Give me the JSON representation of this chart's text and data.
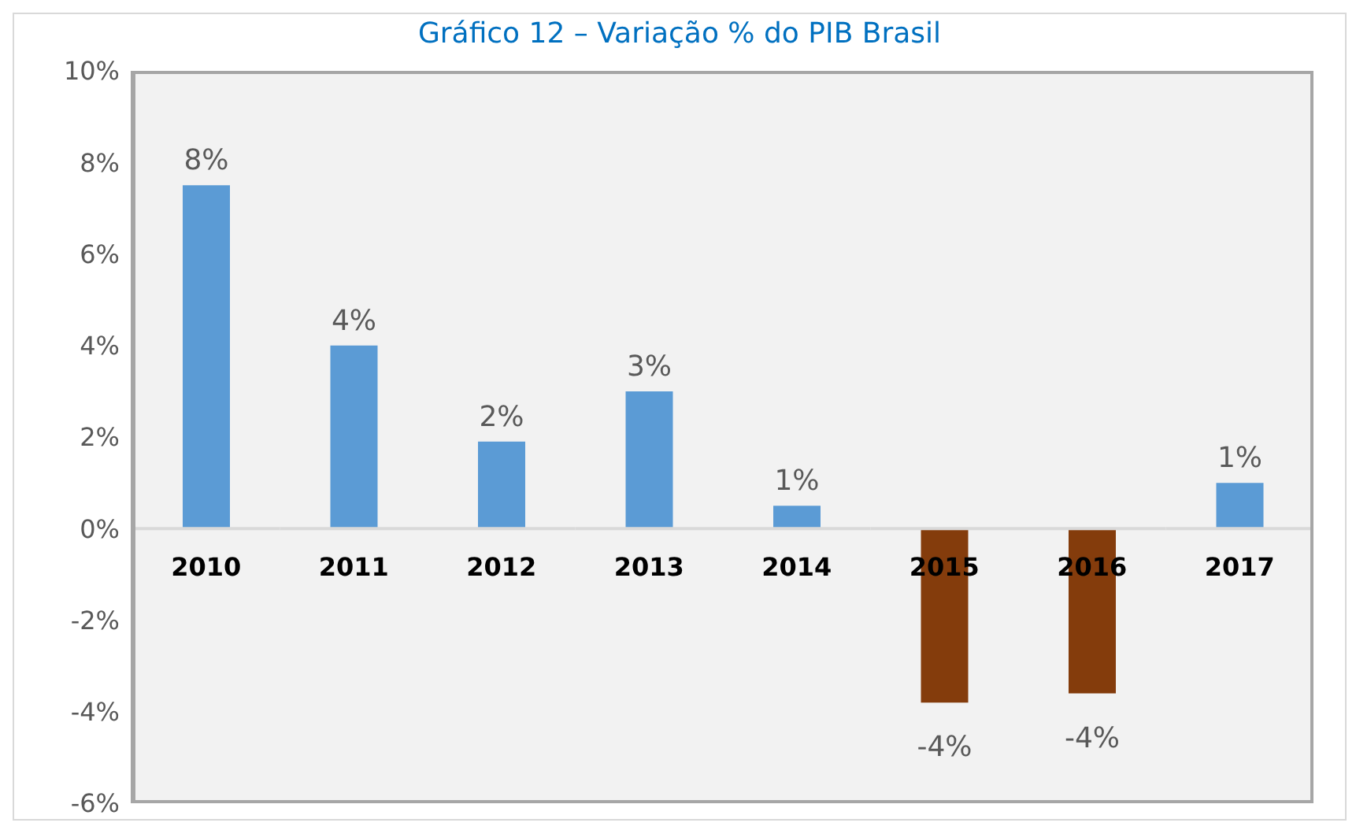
{
  "chart_data": {
    "type": "bar",
    "title": "Gráfico 12 – Variação % do PIB Brasil",
    "categories": [
      "2010",
      "2011",
      "2012",
      "2013",
      "2014",
      "2015",
      "2016",
      "2017"
    ],
    "values": [
      7.5,
      4.0,
      1.9,
      3.0,
      0.5,
      -3.8,
      -3.6,
      1.0
    ],
    "colors": [
      "#5b9bd5",
      "#5b9bd5",
      "#5b9bd5",
      "#5b9bd5",
      "#5b9bd5",
      "#843c0c",
      "#843c0c",
      "#5b9bd5"
    ],
    "value_labels": [
      "8%",
      "4%",
      "2%",
      "3%",
      "1%",
      "-4%",
      "-4%",
      "1%"
    ],
    "ylim": [
      -6,
      10
    ],
    "yticks": [
      {
        "value": -6,
        "label": "-6%"
      },
      {
        "value": -4,
        "label": "-4%"
      },
      {
        "value": -2,
        "label": "-2%"
      },
      {
        "value": 0,
        "label": "0%"
      },
      {
        "value": 2,
        "label": "2%"
      },
      {
        "value": 4,
        "label": "4%"
      },
      {
        "value": 6,
        "label": "6%"
      },
      {
        "value": 8,
        "label": "8%"
      },
      {
        "value": 10,
        "label": "10%"
      }
    ],
    "grid": false
  }
}
